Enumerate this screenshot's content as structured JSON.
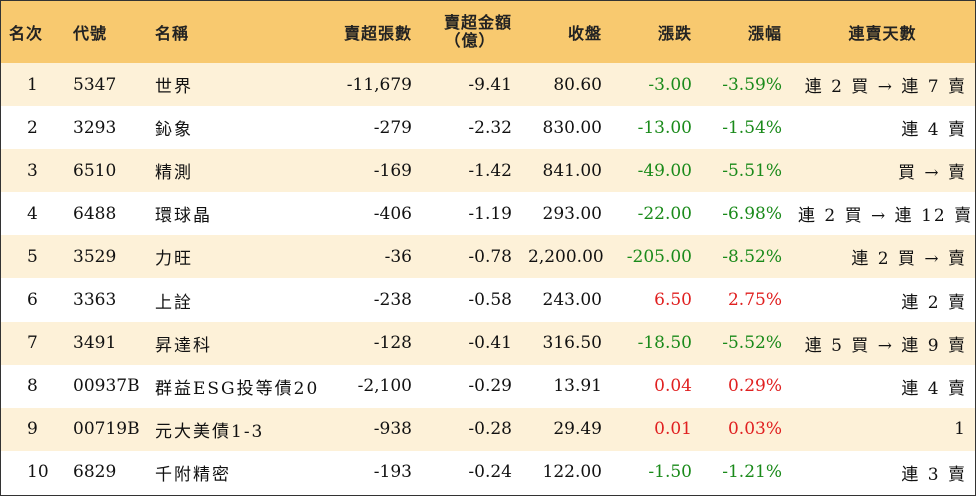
{
  "colors": {
    "header_bg": "#f8c96f",
    "odd_row_bg": "#fdf1d8",
    "even_row_bg": "#ffffff",
    "up": "#e02020",
    "down": "#1a8a1a"
  },
  "headers": {
    "rank": "名次",
    "code": "代號",
    "name": "名稱",
    "net_sell_lots": "賣超張數",
    "net_sell_amount_line1": "賣超金額",
    "net_sell_amount_line2": "（億）",
    "close": "收盤",
    "change": "漲跌",
    "change_pct": "漲幅",
    "streak": "連賣天數"
  },
  "rows": [
    {
      "rank": "1",
      "code": "5347",
      "name": "世界",
      "net_sell_lots": "-11,679",
      "net_sell_amount": "-9.41",
      "close": "80.60",
      "change": "-3.00",
      "change_pct": "-3.59%",
      "direction": "down",
      "streak": "連 2 買 → 連 7 賣"
    },
    {
      "rank": "2",
      "code": "3293",
      "name": "鈊象",
      "net_sell_lots": "-279",
      "net_sell_amount": "-2.32",
      "close": "830.00",
      "change": "-13.00",
      "change_pct": "-1.54%",
      "direction": "down",
      "streak": "連 4 賣"
    },
    {
      "rank": "3",
      "code": "6510",
      "name": "精測",
      "net_sell_lots": "-169",
      "net_sell_amount": "-1.42",
      "close": "841.00",
      "change": "-49.00",
      "change_pct": "-5.51%",
      "direction": "down",
      "streak": "買 → 賣"
    },
    {
      "rank": "4",
      "code": "6488",
      "name": "環球晶",
      "net_sell_lots": "-406",
      "net_sell_amount": "-1.19",
      "close": "293.00",
      "change": "-22.00",
      "change_pct": "-6.98%",
      "direction": "down",
      "streak": "連 2 買 → 連 12 賣"
    },
    {
      "rank": "5",
      "code": "3529",
      "name": "力旺",
      "net_sell_lots": "-36",
      "net_sell_amount": "-0.78",
      "close": "2,200.00",
      "change": "-205.00",
      "change_pct": "-8.52%",
      "direction": "down",
      "streak": "連 2 買 → 賣"
    },
    {
      "rank": "6",
      "code": "3363",
      "name": "上詮",
      "net_sell_lots": "-238",
      "net_sell_amount": "-0.58",
      "close": "243.00",
      "change": "6.50",
      "change_pct": "2.75%",
      "direction": "up",
      "streak": "連 2 賣"
    },
    {
      "rank": "7",
      "code": "3491",
      "name": "昇達科",
      "net_sell_lots": "-128",
      "net_sell_amount": "-0.41",
      "close": "316.50",
      "change": "-18.50",
      "change_pct": "-5.52%",
      "direction": "down",
      "streak": "連 5 買 → 連 9 賣"
    },
    {
      "rank": "8",
      "code": "00937B",
      "name": "群益ESG投等債20",
      "net_sell_lots": "-2,100",
      "net_sell_amount": "-0.29",
      "close": "13.91",
      "change": "0.04",
      "change_pct": "0.29%",
      "direction": "up",
      "streak": "連 4 賣"
    },
    {
      "rank": "9",
      "code": "00719B",
      "name": "元大美債1-3",
      "net_sell_lots": "-938",
      "net_sell_amount": "-0.28",
      "close": "29.49",
      "change": "0.01",
      "change_pct": "0.03%",
      "direction": "up",
      "streak": "1"
    },
    {
      "rank": "10",
      "code": "6829",
      "name": "千附精密",
      "net_sell_lots": "-193",
      "net_sell_amount": "-0.24",
      "close": "122.00",
      "change": "-1.50",
      "change_pct": "-1.21%",
      "direction": "down",
      "streak": "連 3 賣"
    }
  ]
}
